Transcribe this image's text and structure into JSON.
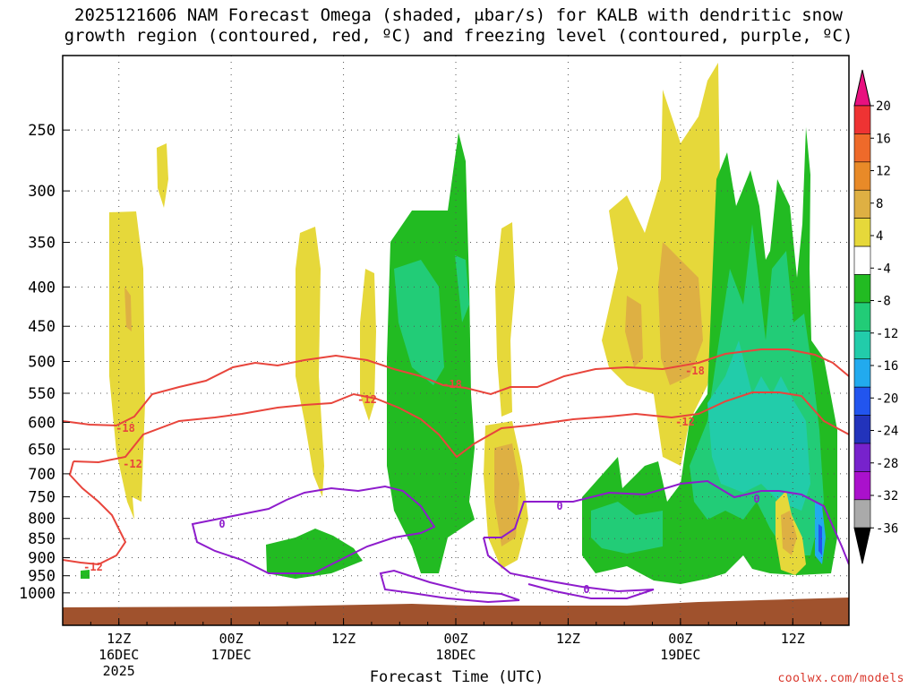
{
  "chart_data": {
    "type": "time-height contour plot",
    "title_line1": "2025121606 NAM Forecast Omega (shaded, μbar/s) for KALB with dendritic snow",
    "title_line2": "growth region (contoured, red, ºC) and freezing level (contoured, purple, ºC)",
    "xlabel": "Forecast Time (UTC)",
    "ylabel": "",
    "y_ticks": [
      "250",
      "300",
      "350",
      "400",
      "450",
      "500",
      "550",
      "600",
      "650",
      "700",
      "750",
      "800",
      "850",
      "900",
      "950",
      "1000"
    ],
    "x_ticks": [
      {
        "label": "12Z",
        "sub1": "16DEC",
        "sub2": "2025",
        "hour": 6
      },
      {
        "label": "00Z",
        "sub1": "17DEC",
        "sub2": "",
        "hour": 18
      },
      {
        "label": "12Z",
        "sub1": "",
        "sub2": "",
        "hour": 30
      },
      {
        "label": "00Z",
        "sub1": "18DEC",
        "sub2": "",
        "hour": 42
      },
      {
        "label": "12Z",
        "sub1": "",
        "sub2": "",
        "hour": 54
      },
      {
        "label": "00Z",
        "sub1": "19DEC",
        "sub2": "",
        "hour": 66
      },
      {
        "label": "12Z",
        "sub1": "",
        "sub2": "",
        "hour": 78
      }
    ],
    "x_range_hours": [
      0,
      84
    ],
    "colorbar_labels": [
      "20",
      "16",
      "12",
      "8",
      "4",
      "-4",
      "-8",
      "-12",
      "-16",
      "-20",
      "-24",
      "-28",
      "-32",
      "-36"
    ],
    "colorbar_colors": [
      "#e8117f",
      "#ee3333",
      "#ee6a2a",
      "#e88a28",
      "#deb043",
      "#e6d83a",
      "#ffffff",
      "#22bb22",
      "#22cc77",
      "#22ccaa",
      "#22aaee",
      "#2255ee",
      "#2233bb",
      "#7722cc",
      "#aa11cc",
      "#aaaaaa",
      "#000000"
    ],
    "contour_labels": {
      "dgz_minus18": "-18",
      "dgz_minus12": "-12",
      "freezing": "0"
    },
    "credit": "coolwx.com/models"
  }
}
